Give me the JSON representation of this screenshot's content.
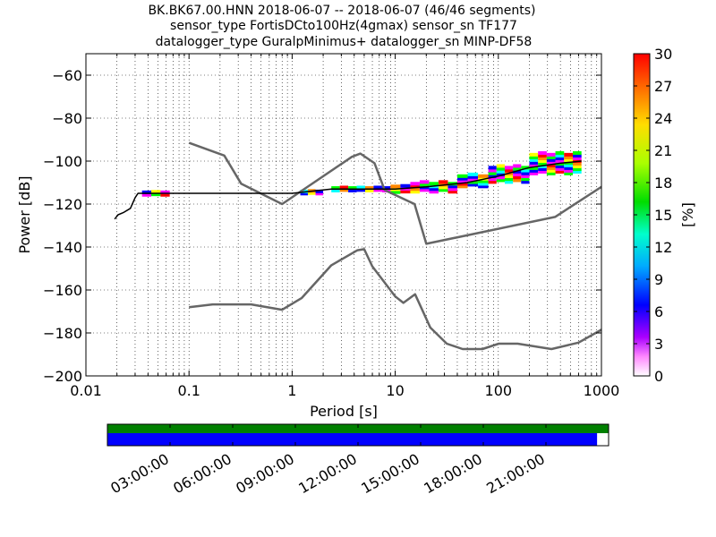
{
  "chart_data": {
    "type": "line",
    "title_lines": [
      "BK.BK67.00.HNN   2018-06-07 -- 2018-06-07  (46/46 segments)",
      "sensor_type FortisDCto100Hz(4gmax) sensor_sn TF177",
      "datalogger_type GuralpMinimus+ datalogger_sn MINP-DF58"
    ],
    "xlabel": "Period [s]",
    "ylabel": "Power [dB]",
    "xscale": "log",
    "xlim": [
      0.01,
      1000
    ],
    "ylim": [
      -200,
      -50
    ],
    "xticks": [
      {
        "v": 0.01,
        "label": "0.01"
      },
      {
        "v": 0.1,
        "label": "0.1"
      },
      {
        "v": 1,
        "label": "1"
      },
      {
        "v": 10,
        "label": "10"
      },
      {
        "v": 100,
        "label": "100"
      },
      {
        "v": 1000,
        "label": "1000"
      }
    ],
    "yticks": [
      {
        "v": -60,
        "label": "−60"
      },
      {
        "v": -80,
        "label": "−80"
      },
      {
        "v": -100,
        "label": "−100"
      },
      {
        "v": -120,
        "label": "−120"
      },
      {
        "v": -140,
        "label": "−140"
      },
      {
        "v": -160,
        "label": "−160"
      },
      {
        "v": -180,
        "label": "−180"
      },
      {
        "v": -200,
        "label": "−200"
      }
    ],
    "grid": true,
    "series": [
      {
        "role": "noise-model-high",
        "color": "#666666",
        "points": [
          [
            0.1,
            -91.5
          ],
          [
            0.22,
            -97.4
          ],
          [
            0.32,
            -110.5
          ],
          [
            0.8,
            -120
          ],
          [
            3.8,
            -98
          ],
          [
            4.6,
            -96.5
          ],
          [
            6.3,
            -101
          ],
          [
            7.9,
            -113.5
          ],
          [
            15.4,
            -120
          ],
          [
            20,
            -138.5
          ],
          [
            354.8,
            -126
          ],
          [
            1000,
            -112
          ]
        ]
      },
      {
        "role": "noise-model-low",
        "color": "#666666",
        "points": [
          [
            0.1,
            -168
          ],
          [
            0.17,
            -166.7
          ],
          [
            0.4,
            -166.7
          ],
          [
            0.8,
            -169.2
          ],
          [
            1.24,
            -163.7
          ],
          [
            2.4,
            -148.5
          ],
          [
            4.3,
            -141.5
          ],
          [
            5,
            -141
          ],
          [
            6,
            -149
          ],
          [
            10,
            -163
          ],
          [
            12,
            -166
          ],
          [
            15.6,
            -162
          ],
          [
            21.9,
            -177.5
          ],
          [
            31.6,
            -185
          ],
          [
            45,
            -187.5
          ],
          [
            70,
            -187.5
          ],
          [
            101,
            -185
          ],
          [
            154,
            -185
          ],
          [
            328,
            -187.5
          ],
          [
            600,
            -184.5
          ],
          [
            1000,
            -178.5
          ]
        ]
      },
      {
        "role": "mode-ppsd",
        "color": "#000000",
        "points": [
          [
            0.019,
            -127
          ],
          [
            0.0205,
            -125
          ],
          [
            0.023,
            -124
          ],
          [
            0.027,
            -122
          ],
          [
            0.03,
            -117
          ],
          [
            0.032,
            -115
          ],
          [
            0.1,
            -115
          ],
          [
            1,
            -115
          ],
          [
            2.4,
            -113
          ],
          [
            10,
            -113
          ],
          [
            20,
            -112
          ],
          [
            50,
            -110
          ],
          [
            100,
            -107
          ],
          [
            200,
            -103
          ],
          [
            400,
            -101
          ],
          [
            640,
            -100
          ]
        ]
      }
    ],
    "ppsd_bands": [
      {
        "x0": 0.035,
        "x1": 0.065,
        "center": -115,
        "spread": 1.2
      },
      {
        "x0": 1.2,
        "x1": 2.0,
        "center": -114.5,
        "spread": 1.0
      },
      {
        "x0": 2.4,
        "x1": 9.0,
        "center": -113,
        "spread": 1.2
      },
      {
        "x0": 9.0,
        "x1": 14.0,
        "center": -113,
        "spread": 2.0
      },
      {
        "x0": 14.0,
        "x1": 40.0,
        "center": -112,
        "spread": 2.5
      },
      {
        "x0": 40.0,
        "x1": 80.0,
        "center": -109,
        "spread": 3.0
      },
      {
        "x0": 80.0,
        "x1": 200.0,
        "center": -106,
        "spread": 4.0
      },
      {
        "x0": 200.0,
        "x1": 640.0,
        "center": -101,
        "spread": 5.0
      }
    ],
    "colorbar": {
      "label": "[%]",
      "range": [
        0,
        30
      ],
      "ticks": [
        {
          "v": 0,
          "label": "0"
        },
        {
          "v": 3,
          "label": "3"
        },
        {
          "v": 6,
          "label": "6"
        },
        {
          "v": 9,
          "label": "9"
        },
        {
          "v": 12,
          "label": "12"
        },
        {
          "v": 15,
          "label": "15"
        },
        {
          "v": 18,
          "label": "18"
        },
        {
          "v": 21,
          "label": "21"
        },
        {
          "v": 24,
          "label": "24"
        },
        {
          "v": 27,
          "label": "27"
        },
        {
          "v": 30,
          "label": "30"
        }
      ]
    },
    "coverage": {
      "time_labels": [
        "03:00:00",
        "06:00:00",
        "09:00:00",
        "12:00:00",
        "15:00:00",
        "18:00:00",
        "21:00:00"
      ],
      "data_coverage_fraction": 1.0,
      "used_coverage_fraction": 0.977,
      "data_color": "#008000",
      "used_color": "#0000ff"
    }
  }
}
